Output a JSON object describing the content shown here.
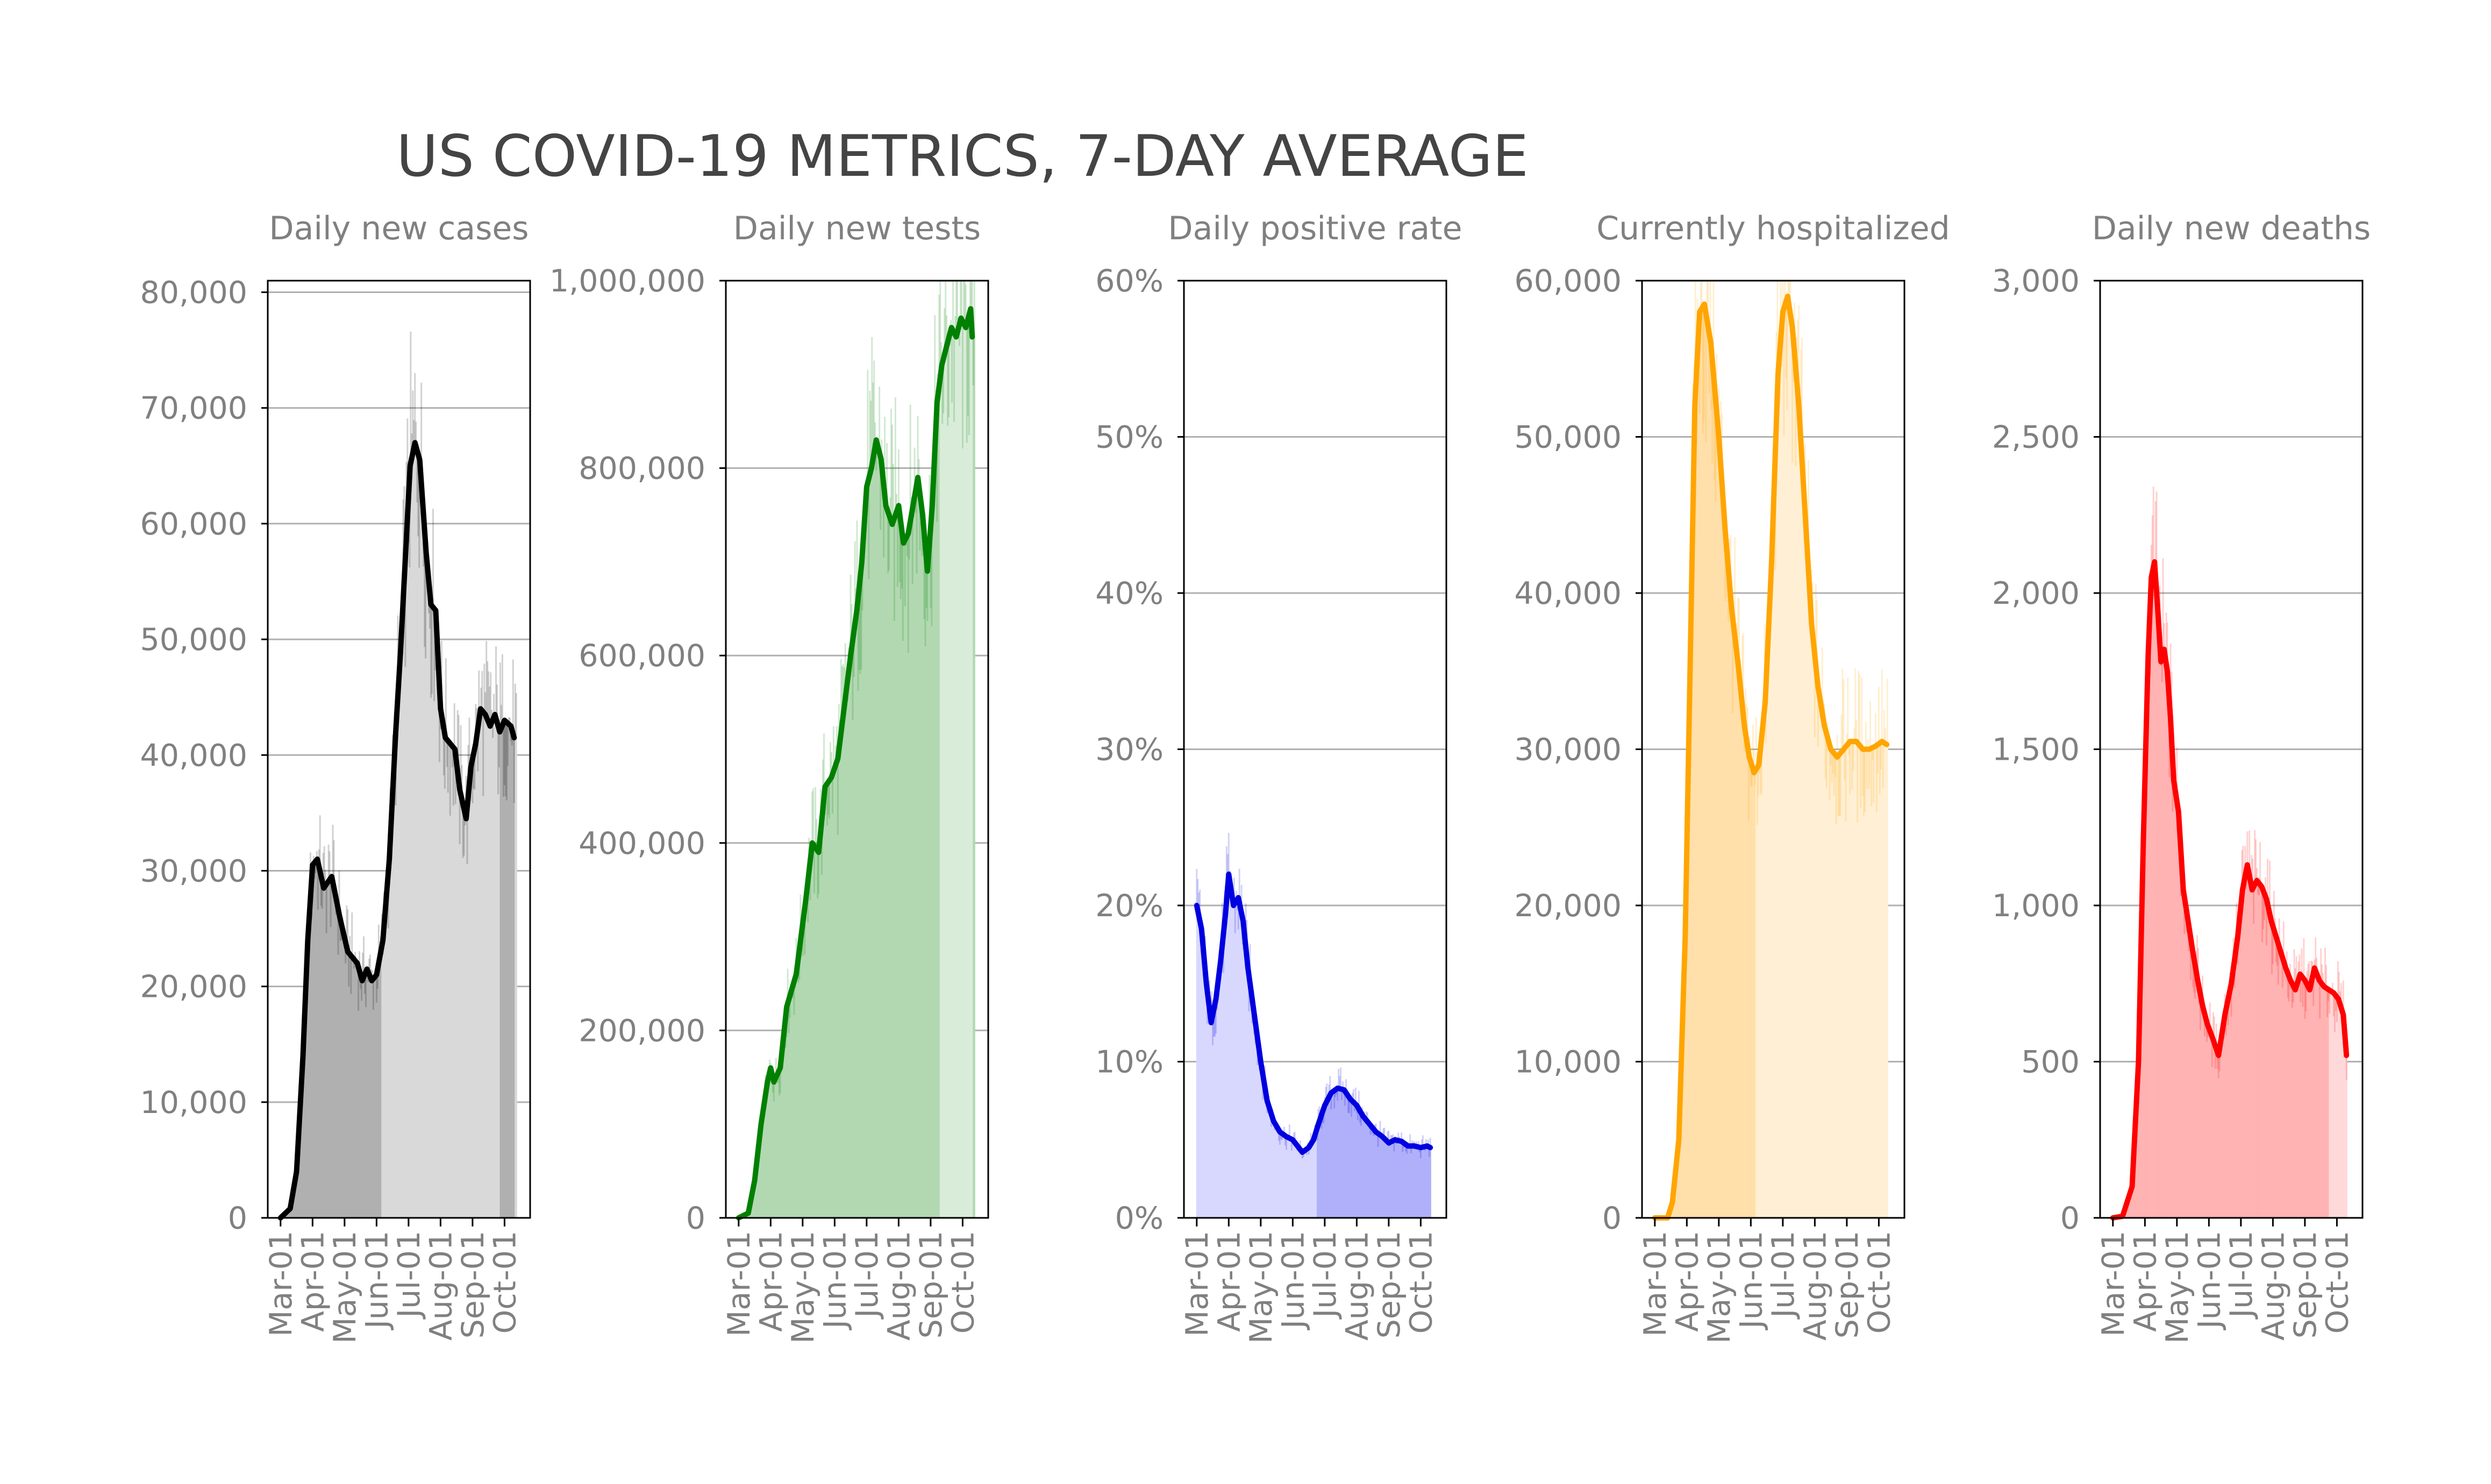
{
  "title": "US COVID-19 METRICS, 7-DAY AVERAGE",
  "xtick_labels": [
    "Mar-01",
    "Apr-01",
    "May-01",
    "Jun-01",
    "Jul-01",
    "Aug-01",
    "Sep-01",
    "Oct-01"
  ],
  "chart_data": [
    {
      "type": "line",
      "title": "Daily new cases",
      "color": "#000000",
      "bar_color": "#d9d9d9",
      "highlight_color": "#b0b0b0",
      "highlight_ranges": [
        [
          -0.1,
          3.15
        ],
        [
          6.85,
          7.3
        ]
      ],
      "ylim": [
        0,
        81000
      ],
      "yticks": [
        0,
        10000,
        20000,
        30000,
        40000,
        50000,
        60000,
        70000,
        80000
      ],
      "ytick_labels": [
        "0",
        "10,000",
        "20,000",
        "30,000",
        "40,000",
        "50,000",
        "60,000",
        "70,000",
        "80,000"
      ],
      "x_range": [
        -0.4,
        7.8
      ],
      "data_end": 7.35,
      "line": [
        [
          0,
          0
        ],
        [
          0.3,
          800
        ],
        [
          0.5,
          4000
        ],
        [
          0.7,
          14000
        ],
        [
          0.85,
          24000
        ],
        [
          1.0,
          30500
        ],
        [
          1.15,
          31000
        ],
        [
          1.35,
          28500
        ],
        [
          1.6,
          29500
        ],
        [
          1.85,
          26000
        ],
        [
          2.1,
          23000
        ],
        [
          2.4,
          22000
        ],
        [
          2.55,
          20500
        ],
        [
          2.7,
          21500
        ],
        [
          2.85,
          20500
        ],
        [
          3.0,
          21000
        ],
        [
          3.2,
          24000
        ],
        [
          3.4,
          31000
        ],
        [
          3.6,
          42000
        ],
        [
          3.75,
          49000
        ],
        [
          3.9,
          57000
        ],
        [
          4.05,
          65000
        ],
        [
          4.2,
          67000
        ],
        [
          4.35,
          65500
        ],
        [
          4.55,
          57500
        ],
        [
          4.7,
          53000
        ],
        [
          4.85,
          52500
        ],
        [
          5.0,
          44000
        ],
        [
          5.15,
          41500
        ],
        [
          5.3,
          41000
        ],
        [
          5.45,
          40500
        ],
        [
          5.6,
          37000
        ],
        [
          5.8,
          34500
        ],
        [
          5.95,
          39000
        ],
        [
          6.1,
          41000
        ],
        [
          6.25,
          44000
        ],
        [
          6.4,
          43500
        ],
        [
          6.55,
          42500
        ],
        [
          6.7,
          43500
        ],
        [
          6.85,
          42000
        ],
        [
          7.0,
          43000
        ],
        [
          7.2,
          42500
        ],
        [
          7.3,
          41500
        ]
      ]
    },
    {
      "type": "line",
      "title": "Daily new tests",
      "color": "#008000",
      "bar_color": "#b2d8b2",
      "highlight_color": "#d9ecd9",
      "highlight_ranges": [
        [
          6.3,
          7.3
        ]
      ],
      "ylim": [
        0,
        1000000
      ],
      "yticks": [
        0,
        200000,
        400000,
        600000,
        800000,
        1000000
      ],
      "ytick_labels": [
        "0",
        "200,000",
        "400,000",
        "600,000",
        "800,000",
        "1,000,000"
      ],
      "x_range": [
        -0.4,
        7.8
      ],
      "data_end": 7.35,
      "line": [
        [
          0,
          0
        ],
        [
          0.3,
          5000
        ],
        [
          0.5,
          40000
        ],
        [
          0.7,
          100000
        ],
        [
          0.9,
          145000
        ],
        [
          1.0,
          160000
        ],
        [
          1.1,
          145000
        ],
        [
          1.3,
          160000
        ],
        [
          1.5,
          225000
        ],
        [
          1.8,
          260000
        ],
        [
          2.1,
          340000
        ],
        [
          2.3,
          400000
        ],
        [
          2.5,
          390000
        ],
        [
          2.7,
          460000
        ],
        [
          2.9,
          470000
        ],
        [
          3.1,
          490000
        ],
        [
          3.3,
          545000
        ],
        [
          3.5,
          600000
        ],
        [
          3.7,
          650000
        ],
        [
          3.85,
          700000
        ],
        [
          4.0,
          780000
        ],
        [
          4.15,
          800000
        ],
        [
          4.3,
          830000
        ],
        [
          4.45,
          810000
        ],
        [
          4.6,
          760000
        ],
        [
          4.8,
          740000
        ],
        [
          5.0,
          760000
        ],
        [
          5.15,
          720000
        ],
        [
          5.3,
          730000
        ],
        [
          5.45,
          760000
        ],
        [
          5.6,
          790000
        ],
        [
          5.75,
          750000
        ],
        [
          5.9,
          690000
        ],
        [
          6.05,
          760000
        ],
        [
          6.2,
          870000
        ],
        [
          6.35,
          910000
        ],
        [
          6.5,
          930000
        ],
        [
          6.65,
          950000
        ],
        [
          6.8,
          940000
        ],
        [
          6.95,
          960000
        ],
        [
          7.1,
          950000
        ],
        [
          7.25,
          970000
        ],
        [
          7.3,
          940000
        ]
      ]
    },
    {
      "type": "line",
      "title": "Daily positive rate",
      "color": "#0000e0",
      "bar_color": "#d8d8ff",
      "highlight_color": "#b0b0fa",
      "highlight_ranges": [
        [
          3.75,
          7.3
        ]
      ],
      "ylim": [
        0,
        60
      ],
      "yticks": [
        0,
        10,
        20,
        30,
        40,
        50,
        60
      ],
      "ytick_labels": [
        "0%",
        "10%",
        "20%",
        "30%",
        "40%",
        "50%",
        "60%"
      ],
      "x_range": [
        -0.4,
        7.8
      ],
      "data_end": 7.3,
      "line": [
        [
          0,
          20
        ],
        [
          0.15,
          18.5
        ],
        [
          0.3,
          15
        ],
        [
          0.45,
          12.5
        ],
        [
          0.6,
          14
        ],
        [
          0.75,
          16.5
        ],
        [
          0.9,
          19.5
        ],
        [
          1.0,
          22
        ],
        [
          1.15,
          20
        ],
        [
          1.3,
          20.5
        ],
        [
          1.45,
          19
        ],
        [
          1.6,
          16
        ],
        [
          1.8,
          13
        ],
        [
          2.0,
          10
        ],
        [
          2.2,
          7.5
        ],
        [
          2.4,
          6.2
        ],
        [
          2.6,
          5.5
        ],
        [
          2.8,
          5.2
        ],
        [
          3.0,
          5.0
        ],
        [
          3.15,
          4.6
        ],
        [
          3.3,
          4.2
        ],
        [
          3.5,
          4.5
        ],
        [
          3.65,
          5.0
        ],
        [
          3.8,
          6.0
        ],
        [
          4.0,
          7.2
        ],
        [
          4.2,
          8.0
        ],
        [
          4.4,
          8.3
        ],
        [
          4.6,
          8.2
        ],
        [
          4.8,
          7.6
        ],
        [
          5.0,
          7.2
        ],
        [
          5.2,
          6.5
        ],
        [
          5.4,
          6.0
        ],
        [
          5.6,
          5.5
        ],
        [
          5.8,
          5.2
        ],
        [
          6.0,
          4.8
        ],
        [
          6.2,
          5.0
        ],
        [
          6.4,
          4.9
        ],
        [
          6.6,
          4.6
        ],
        [
          6.8,
          4.6
        ],
        [
          7.0,
          4.5
        ],
        [
          7.2,
          4.6
        ],
        [
          7.3,
          4.5
        ]
      ]
    },
    {
      "type": "area",
      "title": "Currently hospitalized",
      "color": "#ffa500",
      "bar_color": "#ffefd4",
      "highlight_color": "#ffdfaa",
      "highlight_ranges": [
        [
          -0.1,
          3.15
        ]
      ],
      "ylim": [
        0,
        60000
      ],
      "yticks": [
        0,
        10000,
        20000,
        30000,
        40000,
        50000,
        60000
      ],
      "ytick_labels": [
        "0",
        "10,000",
        "20,000",
        "30,000",
        "40,000",
        "50,000",
        "60,000"
      ],
      "x_range": [
        -0.4,
        7.8
      ],
      "data_end": 7.25,
      "line": [
        [
          0,
          0
        ],
        [
          0.4,
          0
        ],
        [
          0.55,
          1000
        ],
        [
          0.75,
          5000
        ],
        [
          0.95,
          18000
        ],
        [
          1.1,
          35000
        ],
        [
          1.25,
          52000
        ],
        [
          1.4,
          58000
        ],
        [
          1.55,
          58500
        ],
        [
          1.75,
          56000
        ],
        [
          2.0,
          50000
        ],
        [
          2.2,
          44000
        ],
        [
          2.4,
          39000
        ],
        [
          2.6,
          35500
        ],
        [
          2.8,
          31500
        ],
        [
          2.95,
          29500
        ],
        [
          3.1,
          28500
        ],
        [
          3.25,
          29000
        ],
        [
          3.45,
          33000
        ],
        [
          3.65,
          42000
        ],
        [
          3.85,
          54000
        ],
        [
          4.0,
          58000
        ],
        [
          4.15,
          59000
        ],
        [
          4.3,
          57000
        ],
        [
          4.5,
          52000
        ],
        [
          4.7,
          45000
        ],
        [
          4.9,
          38000
        ],
        [
          5.1,
          34000
        ],
        [
          5.3,
          31500
        ],
        [
          5.5,
          30000
        ],
        [
          5.7,
          29500
        ],
        [
          5.9,
          30000
        ],
        [
          6.1,
          30500
        ],
        [
          6.3,
          30500
        ],
        [
          6.5,
          30000
        ],
        [
          6.7,
          30000
        ],
        [
          6.9,
          30200
        ],
        [
          7.1,
          30500
        ],
        [
          7.25,
          30300
        ]
      ]
    },
    {
      "type": "line",
      "title": "Daily new deaths",
      "color": "#ff0000",
      "bar_color": "#ffb3b3",
      "highlight_color": "#ffd9d9",
      "highlight_ranges": [
        [
          6.75,
          7.3
        ]
      ],
      "ylim": [
        0,
        3000
      ],
      "yticks": [
        0,
        500,
        1000,
        1500,
        2000,
        2500,
        3000
      ],
      "ytick_labels": [
        "0",
        "500",
        "1,000",
        "1,500",
        "2,000",
        "2,500",
        "3,000"
      ],
      "x_range": [
        -0.4,
        7.8
      ],
      "data_end": 7.3,
      "line": [
        [
          0,
          0
        ],
        [
          0.3,
          5
        ],
        [
          0.6,
          100
        ],
        [
          0.8,
          500
        ],
        [
          0.95,
          1200
        ],
        [
          1.1,
          1800
        ],
        [
          1.2,
          2050
        ],
        [
          1.3,
          2100
        ],
        [
          1.4,
          1950
        ],
        [
          1.5,
          1780
        ],
        [
          1.6,
          1820
        ],
        [
          1.7,
          1750
        ],
        [
          1.8,
          1600
        ],
        [
          1.9,
          1400
        ],
        [
          2.05,
          1300
        ],
        [
          2.2,
          1050
        ],
        [
          2.35,
          950
        ],
        [
          2.5,
          850
        ],
        [
          2.65,
          760
        ],
        [
          2.8,
          680
        ],
        [
          2.95,
          620
        ],
        [
          3.1,
          580
        ],
        [
          3.3,
          520
        ],
        [
          3.5,
          650
        ],
        [
          3.7,
          750
        ],
        [
          3.9,
          900
        ],
        [
          4.05,
          1050
        ],
        [
          4.2,
          1130
        ],
        [
          4.35,
          1050
        ],
        [
          4.5,
          1080
        ],
        [
          4.65,
          1060
        ],
        [
          4.8,
          1020
        ],
        [
          4.95,
          950
        ],
        [
          5.1,
          900
        ],
        [
          5.25,
          850
        ],
        [
          5.4,
          800
        ],
        [
          5.55,
          760
        ],
        [
          5.7,
          730
        ],
        [
          5.85,
          780
        ],
        [
          6.0,
          760
        ],
        [
          6.15,
          730
        ],
        [
          6.3,
          800
        ],
        [
          6.45,
          760
        ],
        [
          6.6,
          740
        ],
        [
          6.75,
          730
        ],
        [
          6.9,
          720
        ],
        [
          7.05,
          700
        ],
        [
          7.2,
          650
        ],
        [
          7.3,
          520
        ]
      ]
    }
  ]
}
